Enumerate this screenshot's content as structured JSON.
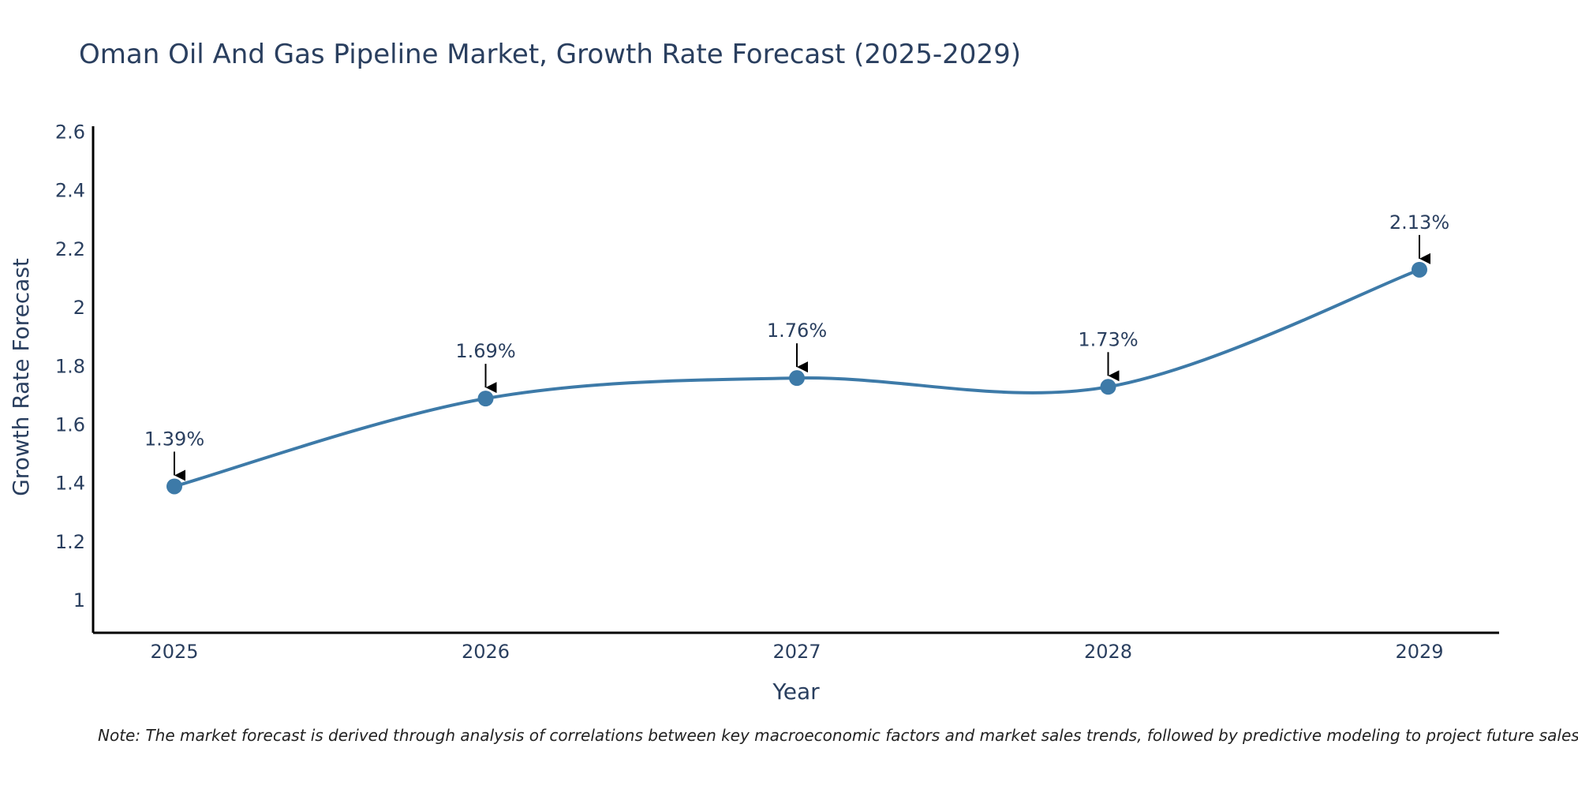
{
  "chart_data": {
    "type": "line",
    "title": "Oman Oil And Gas Pipeline Market, Growth Rate Forecast (2025-2029)",
    "xlabel": "Year",
    "ylabel": "Growth Rate Forecast",
    "categories": [
      "2025",
      "2026",
      "2027",
      "2028",
      "2029"
    ],
    "series": [
      {
        "name": "Growth Rate Forecast",
        "values": [
          1.39,
          1.69,
          1.76,
          1.73,
          2.13
        ],
        "labels": [
          "1.39%",
          "1.69%",
          "1.76%",
          "1.73%",
          "2.13%"
        ],
        "color": "#3d7aa8"
      }
    ],
    "ylim": [
      0.89,
      2.62
    ],
    "yticks": [
      1,
      1.2,
      1.4,
      1.6,
      1.8,
      2,
      2.2,
      2.4,
      2.6
    ],
    "ytick_labels": [
      "1",
      "1.2",
      "1.4",
      "1.6",
      "1.8",
      "2",
      "2.2",
      "2.4",
      "2.6"
    ],
    "grid": false,
    "line_shape": "spline",
    "annotation_arrows": true
  },
  "note": "Note: The market forecast is derived through analysis of correlations between key macroeconomic factors and market sales trends, followed by predictive modeling to project future sales.",
  "colors": {
    "line": "#3d7aa8",
    "text": "#2a3f5f",
    "axis": "#000000",
    "arrow": "#000000"
  }
}
